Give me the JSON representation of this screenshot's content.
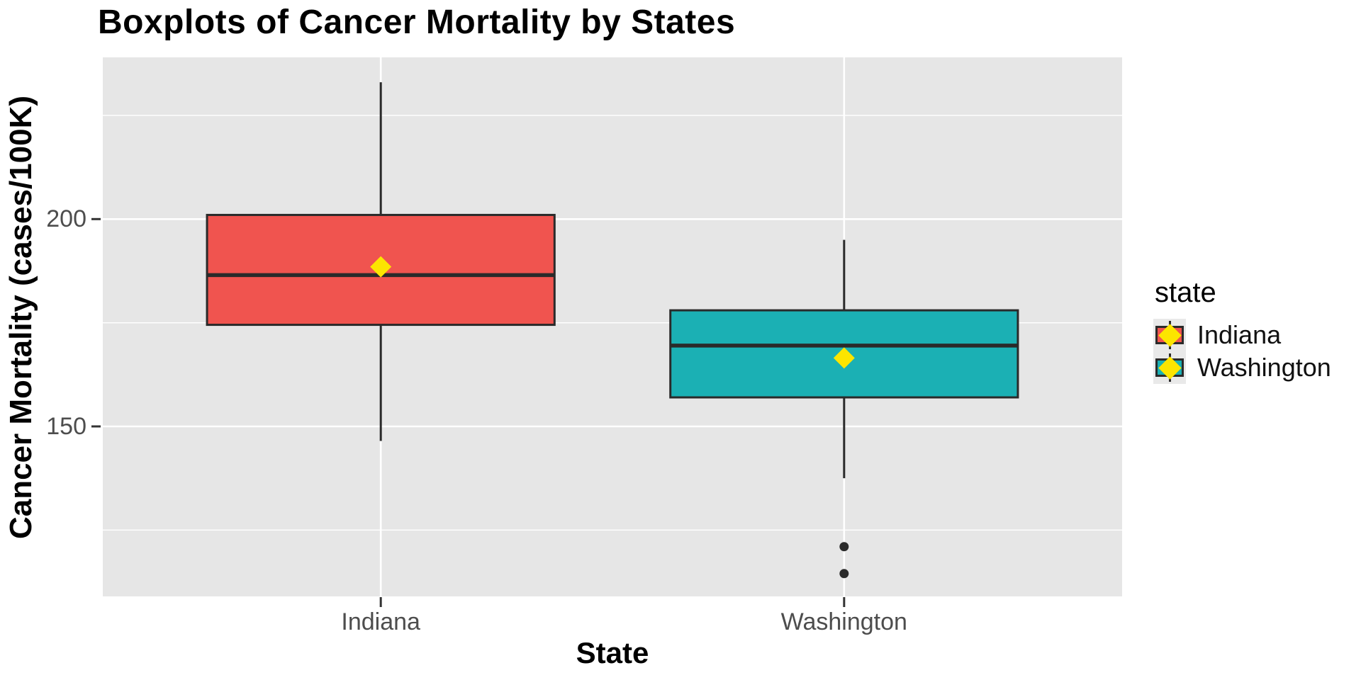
{
  "chart_data": {
    "type": "boxplot",
    "title": "Boxplots of Cancer Mortality by States",
    "xlabel": "State",
    "ylabel": "Cancer Mortality (cases/100K)",
    "categories": [
      "Indiana",
      "Washington"
    ],
    "series": [
      {
        "name": "Indiana",
        "fill": "#F0544F",
        "whisker_low": 146.5,
        "q1": 174.5,
        "median": 186.5,
        "q3": 201,
        "whisker_high": 233,
        "mean": 188.5,
        "outliers": []
      },
      {
        "name": "Washington",
        "fill": "#1BB0B4",
        "whisker_low": 137.5,
        "q1": 157,
        "median": 169.5,
        "q3": 178,
        "whisker_high": 195,
        "mean": 166.5,
        "outliers": [
          121,
          114.5
        ]
      }
    ],
    "ylim": [
      109,
      239
    ],
    "y_ticks": [
      {
        "value": 200,
        "label": "200"
      },
      {
        "value": 150,
        "label": "150"
      }
    ],
    "y_minor": [
      225,
      175,
      125
    ],
    "grid": "on",
    "legend_position": "right",
    "mean_marker": {
      "shape": "diamond",
      "color": "#FCE500"
    }
  },
  "legend": {
    "title": "state",
    "items": [
      {
        "label": "Indiana",
        "color": "#F0544F"
      },
      {
        "label": "Washington",
        "color": "#1BB0B4"
      }
    ]
  },
  "style": {
    "panel_bg": "#E6E6E6",
    "grid_color": "#FFFFFF",
    "stroke_dark": "#2A2A2A",
    "tick_color": "#333333",
    "tick_label_color": "#4D4D4D"
  }
}
